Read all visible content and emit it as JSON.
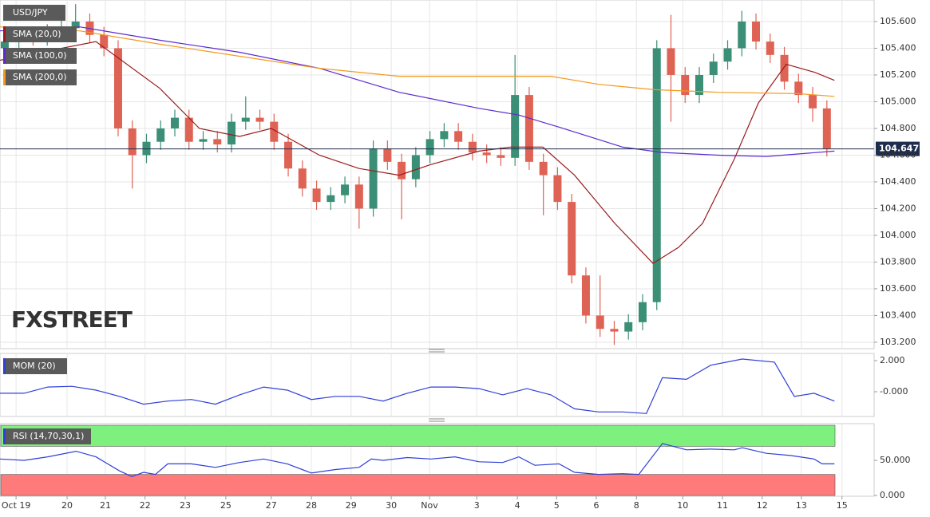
{
  "chart_data": [
    {
      "type": "candlestick",
      "title": "USD/JPY",
      "watermark": "FXSTREET",
      "grid": true,
      "up_color": "#3a8f76",
      "down_color": "#df6355",
      "x": [
        1,
        4,
        7,
        10,
        13,
        16,
        19,
        22,
        25,
        28,
        31,
        34,
        37,
        40,
        43,
        46,
        49,
        52,
        55,
        58,
        61,
        64,
        67,
        70,
        73,
        76,
        79,
        82,
        85,
        88,
        91,
        94,
        97,
        100,
        103,
        106,
        109,
        112,
        115,
        118,
        121,
        124,
        127,
        130,
        133,
        136,
        139,
        142,
        145,
        148,
        151,
        154,
        157,
        160,
        163,
        166,
        169,
        172,
        175
      ],
      "open": [
        105.4,
        105.45,
        105.5,
        105.48,
        105.52,
        105.55,
        105.6,
        105.5,
        105.4,
        104.8,
        104.6,
        104.7,
        104.8,
        104.88,
        104.7,
        104.72,
        104.68,
        104.85,
        104.88,
        104.85,
        104.7,
        104.5,
        104.35,
        104.25,
        104.3,
        104.38,
        104.2,
        104.65,
        104.55,
        104.42,
        104.6,
        104.72,
        104.78,
        104.7,
        104.62,
        104.6,
        104.58,
        105.05,
        104.55,
        104.45,
        104.25,
        103.7,
        103.4,
        103.3,
        103.28,
        103.35,
        103.5,
        105.4,
        105.2,
        105.05,
        105.2,
        105.3,
        105.4,
        105.6,
        105.45,
        105.35,
        105.15,
        105.05,
        104.95
      ],
      "high": [
        105.51,
        105.56,
        105.56,
        105.58,
        105.61,
        105.73,
        105.66,
        105.56,
        105.46,
        104.86,
        104.76,
        104.86,
        104.94,
        104.94,
        104.78,
        104.78,
        104.91,
        105.04,
        104.94,
        104.91,
        104.76,
        104.56,
        104.41,
        104.36,
        104.44,
        104.44,
        104.71,
        104.71,
        104.61,
        104.66,
        104.78,
        104.84,
        104.84,
        104.76,
        104.68,
        104.66,
        105.35,
        105.11,
        104.61,
        104.51,
        104.31,
        103.76,
        103.7,
        103.36,
        103.41,
        103.56,
        105.46,
        105.65,
        105.26,
        105.26,
        105.36,
        105.46,
        105.68,
        105.66,
        105.51,
        105.41,
        105.21,
        105.11,
        105.01
      ],
      "low": [
        105.34,
        105.39,
        105.42,
        105.42,
        105.46,
        105.49,
        105.44,
        105.34,
        104.74,
        104.35,
        104.54,
        104.64,
        104.74,
        104.64,
        104.64,
        104.62,
        104.62,
        104.79,
        104.79,
        104.64,
        104.44,
        104.29,
        104.19,
        104.19,
        104.24,
        104.05,
        104.14,
        104.49,
        104.12,
        104.36,
        104.54,
        104.66,
        104.64,
        104.56,
        104.54,
        104.52,
        104.52,
        104.49,
        104.15,
        104.19,
        103.64,
        103.34,
        103.24,
        103.18,
        103.22,
        103.29,
        103.44,
        104.85,
        104.99,
        104.99,
        105.14,
        105.24,
        105.34,
        105.39,
        105.29,
        105.09,
        104.99,
        104.85,
        104.59
      ],
      "close": [
        105.45,
        105.5,
        105.48,
        105.52,
        105.55,
        105.6,
        105.5,
        105.4,
        104.8,
        104.6,
        104.7,
        104.8,
        104.88,
        104.7,
        104.72,
        104.68,
        104.85,
        104.88,
        104.85,
        104.7,
        104.5,
        104.35,
        104.25,
        104.3,
        104.38,
        104.2,
        104.65,
        104.55,
        104.42,
        104.6,
        104.72,
        104.78,
        104.7,
        104.62,
        104.6,
        104.58,
        105.05,
        104.55,
        104.45,
        104.25,
        103.7,
        103.4,
        103.3,
        103.28,
        103.35,
        103.5,
        105.4,
        105.2,
        105.05,
        105.2,
        105.3,
        105.4,
        105.6,
        105.45,
        105.35,
        105.15,
        105.05,
        104.95,
        104.65
      ],
      "series": [
        {
          "name": "SMA (20,0)",
          "color": "#9b1c1c",
          "x": [
            0,
            20.3,
            33.8,
            42.2,
            50.7,
            57.4,
            67.6,
            76,
            84.5,
            91.2,
            101.4,
            108.1,
            114.9,
            121.6,
            130.1,
            138.2,
            143.6,
            148.7,
            155.4,
            160.5,
            166.4,
            172.4,
            176.6
          ],
          "values": [
            105.31,
            105.45,
            105.1,
            104.8,
            104.74,
            104.8,
            104.6,
            104.5,
            104.45,
            104.53,
            104.63,
            104.66,
            104.66,
            104.45,
            104.09,
            103.79,
            103.91,
            104.09,
            104.57,
            104.99,
            105.28,
            105.22,
            105.16
          ]
        },
        {
          "name": "SMA (100,0)",
          "color": "#5b2bd0",
          "x": [
            0,
            16.9,
            33.8,
            50.7,
            67.6,
            84.5,
            101.4,
            109.8,
            118.3,
            131.8,
            140.2,
            152.1,
            162.2,
            176.6
          ],
          "values": [
            105.53,
            105.56,
            105.46,
            105.37,
            105.25,
            105.07,
            104.95,
            104.9,
            104.81,
            104.66,
            104.62,
            104.6,
            104.59,
            104.63
          ]
        },
        {
          "name": "SMA (200,0)",
          "color": "#f39a1e",
          "x": [
            0,
            16.9,
            33.8,
            50.7,
            67.6,
            84.5,
            101.4,
            116.6,
            126.7,
            138.5,
            152.1,
            168.9,
            176.6
          ],
          "values": [
            105.56,
            105.53,
            105.43,
            105.34,
            105.25,
            105.19,
            105.19,
            105.19,
            105.13,
            105.09,
            105.07,
            105.06,
            105.04
          ]
        }
      ],
      "current_price": 104.647,
      "xlim": [
        0,
        185
      ],
      "xticks": [
        {
          "value": 3.4,
          "label": "Oct 19"
        },
        {
          "value": 14.2,
          "label": "20"
        },
        {
          "value": 22.3,
          "label": "21"
        },
        {
          "value": 30.7,
          "label": "22"
        },
        {
          "value": 39.2,
          "label": "23"
        },
        {
          "value": 47.8,
          "label": "25"
        },
        {
          "value": 57.4,
          "label": "27"
        },
        {
          "value": 65.9,
          "label": "28"
        },
        {
          "value": 74.3,
          "label": "29"
        },
        {
          "value": 82.8,
          "label": "30"
        },
        {
          "value": 90.9,
          "label": "Nov"
        },
        {
          "value": 100.9,
          "label": "3"
        },
        {
          "value": 109.5,
          "label": "4"
        },
        {
          "value": 117.8,
          "label": "5"
        },
        {
          "value": 126.2,
          "label": "6"
        },
        {
          "value": 134.7,
          "label": "8"
        },
        {
          "value": 144.5,
          "label": "10"
        },
        {
          "value": 152.9,
          "label": "11"
        },
        {
          "value": 161.3,
          "label": "12"
        },
        {
          "value": 169.6,
          "label": "13"
        },
        {
          "value": 178.2,
          "label": "15"
        }
      ],
      "ylim": [
        103.152,
        105.761
      ],
      "yticks": [
        {
          "value": 105.6,
          "label": "105.600"
        },
        {
          "value": 105.4,
          "label": "105.400"
        },
        {
          "value": 105.2,
          "label": "105.200"
        },
        {
          "value": 105,
          "label": "105.000"
        },
        {
          "value": 104.8,
          "label": "104.800"
        },
        {
          "value": 104.6,
          "label": "104.600"
        },
        {
          "value": 104.4,
          "label": "104.400"
        },
        {
          "value": 104.2,
          "label": "104.200"
        },
        {
          "value": 104,
          "label": "104.000"
        },
        {
          "value": 103.8,
          "label": "103.800"
        },
        {
          "value": 103.6,
          "label": "103.600"
        },
        {
          "value": 103.4,
          "label": "103.400"
        },
        {
          "value": 103.2,
          "label": "103.200"
        }
      ]
    },
    {
      "type": "line",
      "series": [
        {
          "name": "MOM (20)",
          "color": "#2f3fd8",
          "x": [
            0,
            5.1,
            10.1,
            15.2,
            20.3,
            25.3,
            30.4,
            35.5,
            40.5,
            45.6,
            50.7,
            55.8,
            60.8,
            65.9,
            71,
            76,
            81.1,
            86.2,
            91.2,
            96.3,
            101.4,
            106.4,
            111.5,
            116.6,
            121.6,
            126.7,
            131.8,
            136.8,
            140.2,
            145.3,
            150.4,
            157.1,
            163.9,
            168.1,
            172.3,
            176.6
          ],
          "values": [
            -0.1,
            -0.1,
            0.3,
            0.35,
            0.1,
            -0.3,
            -0.8,
            -0.6,
            -0.5,
            -0.8,
            -0.2,
            0.3,
            0.1,
            -0.5,
            -0.3,
            -0.3,
            -0.6,
            -0.1,
            0.3,
            0.3,
            0.2,
            -0.2,
            0.2,
            -0.2,
            -1.1,
            -1.3,
            -1.3,
            -1.4,
            0.9,
            0.8,
            1.7,
            2.1,
            1.9,
            -0.3,
            -0.1,
            -0.6
          ]
        }
      ],
      "ylim": [
        -1.59,
        2.46
      ],
      "yticks": [
        {
          "value": 2,
          "label": "2.000"
        },
        {
          "value": 0,
          "label": "-0.000"
        }
      ]
    },
    {
      "type": "line",
      "series": [
        {
          "name": "RSI (14,70,30,1)",
          "color": "#2f3fd8",
          "x": [
            0,
            5.1,
            10.1,
            16.1,
            20.3,
            25.3,
            27.9,
            30.4,
            32.9,
            35.5,
            40.5,
            45.6,
            50.7,
            55.8,
            60.8,
            65.9,
            71,
            76,
            78.6,
            81.1,
            86.2,
            91.2,
            96.3,
            101.4,
            106.4,
            109.8,
            113.2,
            118.3,
            121.6,
            126.7,
            131.8,
            135.2,
            140.2,
            145.3,
            150.4,
            155.4,
            157.1,
            162.2,
            167.3,
            172.3,
            174,
            176.6
          ],
          "values": [
            52,
            50,
            55,
            63,
            55,
            35,
            27,
            33,
            30,
            45,
            45,
            40,
            47,
            52,
            45,
            32,
            37,
            40,
            52,
            50,
            54,
            52,
            55,
            48,
            47,
            55,
            43,
            45,
            33,
            30,
            31,
            30,
            74,
            65,
            66,
            65,
            68,
            60,
            57,
            52,
            45,
            45
          ]
        }
      ],
      "bands": [
        {
          "from": 70,
          "to": 100,
          "color": "#7ef07e"
        },
        {
          "from": 0,
          "to": 30,
          "color": "#ff7b7b"
        }
      ],
      "ylim": [
        -1.1,
        102.3
      ],
      "yticks": [
        {
          "value": 50,
          "label": "50.000"
        },
        {
          "value": 0,
          "label": "0.000"
        }
      ]
    }
  ]
}
